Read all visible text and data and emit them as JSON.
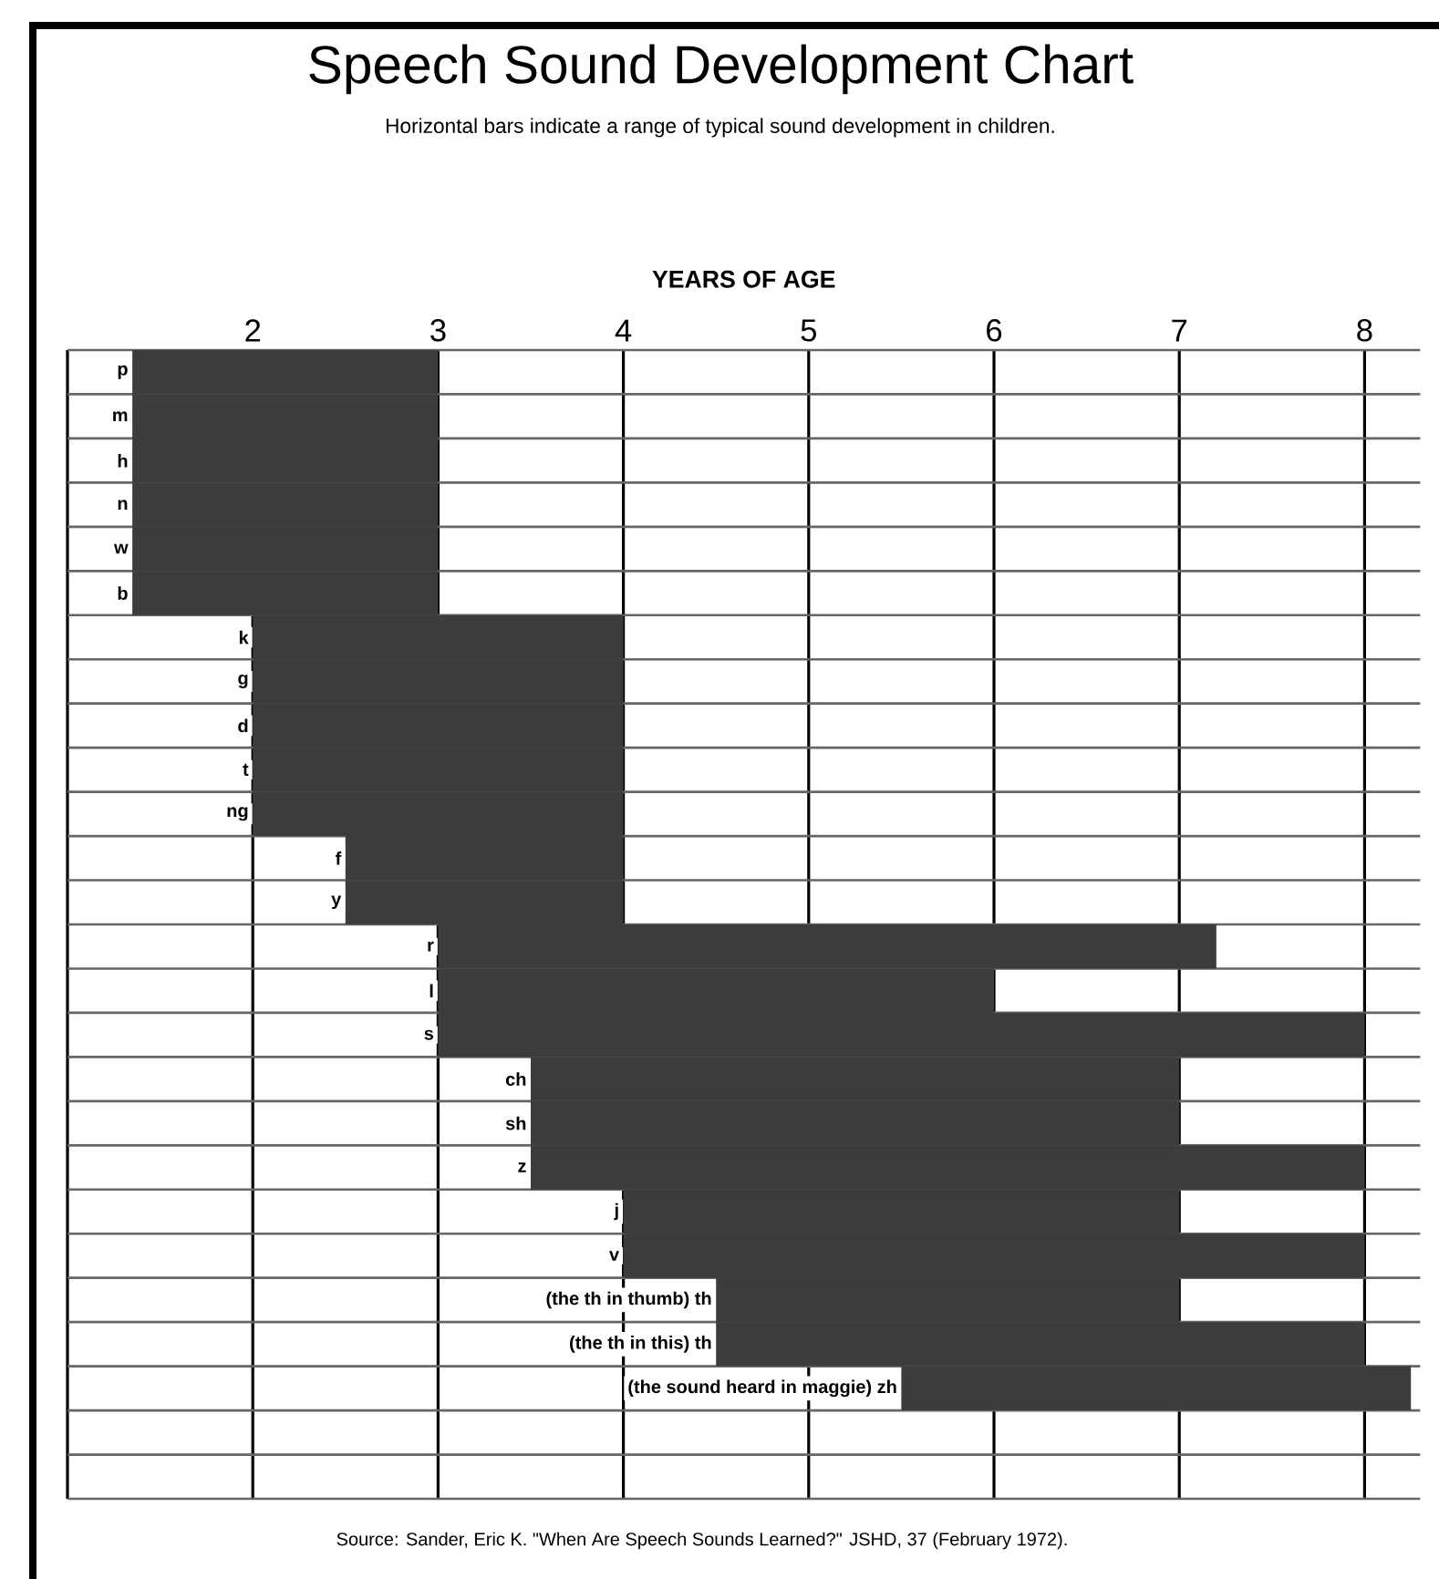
{
  "chart_data": {
    "type": "bar",
    "orientation": "horizontal",
    "title": "Speech Sound Development Chart",
    "subtitle": "Horizontal bars indicate a range of typical sound development in children.",
    "xlabel": "YEARS OF AGE",
    "categories": [
      "p",
      "m",
      "h",
      "n",
      "w",
      "b",
      "k",
      "g",
      "d",
      "t",
      "ng",
      "f",
      "y",
      "r",
      "l",
      "s",
      "ch",
      "sh",
      "z",
      "j",
      "v",
      "(the th in thumb) th",
      "(the th in this) th",
      "(the sound heard in maggie) zh",
      null,
      null
    ],
    "base": [
      1.35,
      1.35,
      1.35,
      1.35,
      1.35,
      1.35,
      2,
      2,
      2,
      2,
      2,
      2.5,
      2.5,
      3,
      3,
      3,
      3.5,
      3.5,
      3.5,
      4,
      4,
      4.5,
      4.5,
      5.5,
      null,
      null
    ],
    "values": [
      1.65,
      1.65,
      1.65,
      1.65,
      1.65,
      1.65,
      2,
      2,
      2,
      2,
      2,
      1.5,
      1.5,
      4.2,
      3,
      5,
      3.5,
      3.5,
      4.5,
      3,
      4,
      2.5,
      3.5,
      2.75,
      null,
      null
    ],
    "color": "#3c3c3c",
    "xlim": [
      1,
      8.3
    ],
    "xticks": [
      {
        "value": 1,
        "label": null
      },
      2,
      3,
      4,
      5,
      6,
      7,
      8
    ],
    "grid": true,
    "annotations": [
      "Source: Sander, Eric K. \"When Are Speech Sounds Learned?\" JSHD, 37 (February 1972)."
    ]
  }
}
